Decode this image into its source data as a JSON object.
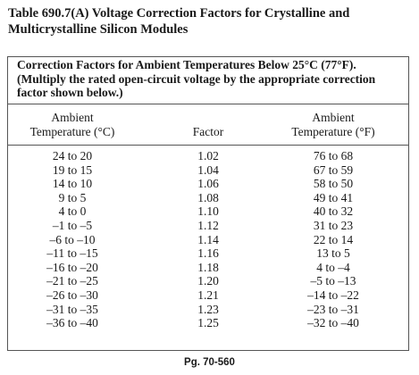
{
  "title": "Table 690.7(A)  Voltage Correction Factors for Crystalline and Multicrystalline Silicon Modules",
  "table": {
    "caption": "Correction Factors for Ambient Temperatures Below 25°C (77°F). (Multiply the rated open-circuit voltage by the appropriate correction factor shown below.)",
    "columns": [
      [
        "Ambient",
        "Temperature (°C)"
      ],
      [
        "Factor"
      ],
      [
        "Ambient",
        "Temperature (°F)"
      ]
    ],
    "rows": [
      [
        "24 to 20",
        "1.02",
        "76 to 68"
      ],
      [
        "19 to 15",
        "1.04",
        "67 to 59"
      ],
      [
        "14 to 10",
        "1.06",
        "58 to 50"
      ],
      [
        "9 to 5",
        "1.08",
        "49 to 41"
      ],
      [
        "4 to 0",
        "1.10",
        "40 to 32"
      ],
      [
        "–1 to –5",
        "1.12",
        "31 to 23"
      ],
      [
        "–6 to –10",
        "1.14",
        "22 to 14"
      ],
      [
        "–11 to –15",
        "1.16",
        "13 to 5"
      ],
      [
        "–16 to –20",
        "1.18",
        "4 to –4"
      ],
      [
        "–21 to –25",
        "1.20",
        "–5 to –13"
      ],
      [
        "–26 to –30",
        "1.21",
        "–14 to –22"
      ],
      [
        "–31 to –35",
        "1.23",
        "–23 to –31"
      ],
      [
        "–36 to –40",
        "1.25",
        "–32 to –40"
      ]
    ]
  },
  "footer": "Pg. 70-560"
}
